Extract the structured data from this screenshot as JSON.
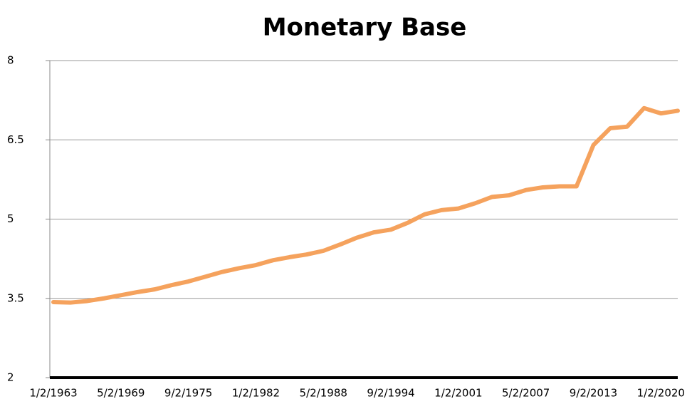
{
  "chart_data": {
    "type": "line",
    "title": "Monetary Base",
    "categories": [
      "1/2/1963",
      null,
      null,
      null,
      "5/2/1969",
      null,
      null,
      null,
      "9/2/1975",
      null,
      null,
      null,
      "1/2/1982",
      null,
      null,
      null,
      "5/2/1988",
      null,
      null,
      null,
      "9/2/1994",
      null,
      null,
      null,
      "1/2/2001",
      null,
      null,
      null,
      "5/2/2007",
      null,
      null,
      null,
      "9/2/2013",
      null,
      null,
      null,
      "1/2/2020",
      null
    ],
    "series": [
      {
        "name": "Monetary Base",
        "color": "#f5a25d",
        "values": [
          3.43,
          3.42,
          3.45,
          3.5,
          3.56,
          3.62,
          3.67,
          3.75,
          3.82,
          3.91,
          4.0,
          4.07,
          4.13,
          4.22,
          4.28,
          4.33,
          4.4,
          4.52,
          4.65,
          4.75,
          4.8,
          4.93,
          5.09,
          5.17,
          5.2,
          5.3,
          5.42,
          5.45,
          5.55,
          5.6,
          5.62,
          5.62,
          6.4,
          6.72,
          6.75,
          7.1,
          7.0,
          7.05
        ]
      }
    ],
    "ylim": [
      2,
      8
    ],
    "yticks": [
      2,
      3.5,
      5,
      6.5,
      8
    ],
    "grid": true
  }
}
